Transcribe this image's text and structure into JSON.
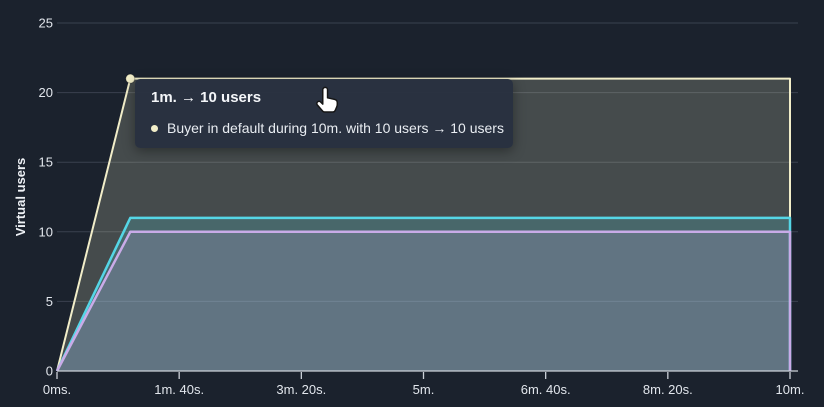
{
  "chart_data": {
    "type": "area",
    "title": "",
    "xlabel": "",
    "ylabel": "Virtual users",
    "xlim": [
      0,
      600
    ],
    "ylim": [
      0,
      25
    ],
    "grid": true,
    "x_ticks": [
      {
        "t": 0,
        "label": "0ms."
      },
      {
        "t": 100,
        "label": "1m. 40s."
      },
      {
        "t": 200,
        "label": "3m. 20s."
      },
      {
        "t": 300,
        "label": "5m."
      },
      {
        "t": 400,
        "label": "6m. 40s."
      },
      {
        "t": 500,
        "label": "8m. 20s."
      },
      {
        "t": 600,
        "label": "10m."
      }
    ],
    "y_ticks": [
      0,
      5,
      10,
      15,
      20,
      25
    ],
    "series": [
      {
        "name": "series-cream-total",
        "color": "#f2eec9",
        "stroke_width": 2,
        "points": [
          [
            0,
            0
          ],
          [
            60,
            21
          ],
          [
            600,
            21
          ]
        ]
      },
      {
        "name": "series-cyan",
        "color": "#55d6e6",
        "stroke_width": 2.5,
        "points": [
          [
            0,
            0
          ],
          [
            60,
            11
          ],
          [
            600,
            11
          ]
        ]
      },
      {
        "name": "series-purple",
        "color": "#c9abe8",
        "stroke_width": 2.5,
        "points": [
          [
            0,
            0
          ],
          [
            60,
            10
          ],
          [
            600,
            10
          ]
        ]
      }
    ],
    "fill_opacity": 0.2,
    "marker": {
      "t": 60,
      "value": 21,
      "color": "#f2eec9"
    },
    "style": {
      "background": "#1b222d",
      "grid_color": "#3a414e",
      "axis_color": "#ccd1d9",
      "text_color": "#e2e6ec"
    }
  },
  "tooltip": {
    "title": "1m. → 10 users",
    "items": [
      {
        "bullet_color": "#f2eec9",
        "text": "Buyer in default during 10m. with 10 users → 10 users"
      }
    ]
  },
  "cursor": {
    "icon": "hand-pointer"
  }
}
